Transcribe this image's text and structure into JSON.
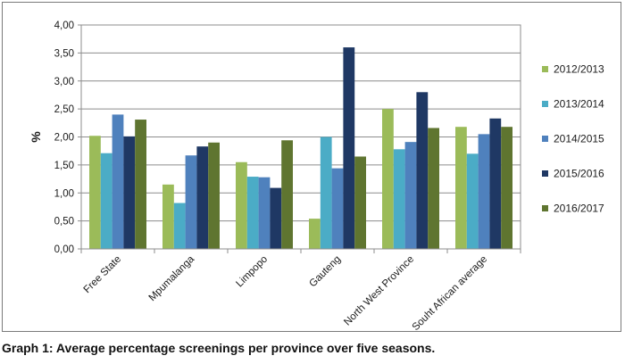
{
  "caption": "Graph 1: Average percentage screenings per province over five seasons.",
  "chart_data": {
    "type": "bar",
    "title": "",
    "xlabel": "",
    "ylabel": "%",
    "ylim": [
      0,
      4
    ],
    "yticks": [
      "0,00",
      "0,50",
      "1,00",
      "1,50",
      "2,00",
      "2,50",
      "3,00",
      "3,50",
      "4,00"
    ],
    "grid": "horizontal",
    "legend_position": "right",
    "categories": [
      "Free State",
      "Mpumalanga",
      "Limpopo",
      "Gauteng",
      "North West Province",
      "Souht African average"
    ],
    "series": [
      {
        "name": "2012/2013",
        "color": "#9bbb59",
        "values": [
          2.02,
          1.15,
          1.55,
          0.54,
          2.5,
          2.18
        ]
      },
      {
        "name": "2013/2014",
        "color": "#4bacc6",
        "values": [
          1.71,
          0.82,
          1.29,
          2.0,
          1.78,
          1.7
        ]
      },
      {
        "name": "2014/2015",
        "color": "#4f81bd",
        "values": [
          2.4,
          1.67,
          1.28,
          1.44,
          1.91,
          2.05
        ]
      },
      {
        "name": "2015/2016",
        "color": "#1f3864",
        "values": [
          2.01,
          1.83,
          1.09,
          3.6,
          2.8,
          2.33
        ]
      },
      {
        "name": "2016/2017",
        "color": "#5f7530",
        "values": [
          2.31,
          1.9,
          1.94,
          1.65,
          2.16,
          2.18
        ]
      }
    ]
  }
}
